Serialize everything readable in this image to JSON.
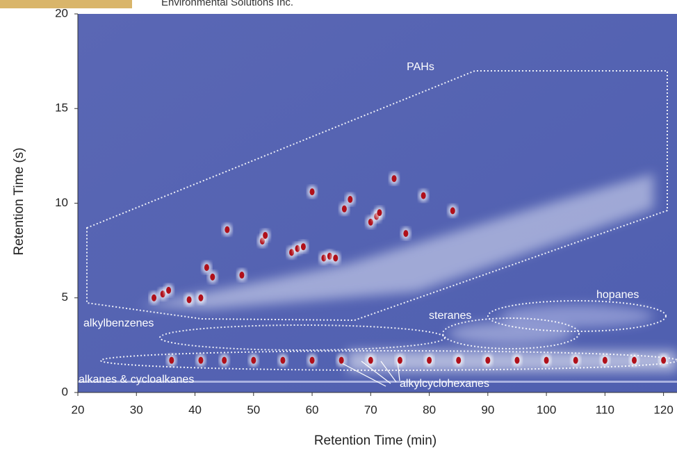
{
  "chart_data": {
    "type": "scatter",
    "header": "Environmental Solutions Inc.",
    "x_label": "Retention Time (min)",
    "y_label": "Retention Time (s)",
    "xlim": [
      20,
      122.3
    ],
    "ylim": [
      0,
      20
    ],
    "xticks": [
      20,
      30,
      40,
      50,
      60,
      70,
      80,
      90,
      100,
      110,
      120
    ],
    "yticks": [
      0,
      5,
      10,
      15,
      20
    ],
    "color": "#b0101a",
    "x": [
      33,
      34.5,
      35.5,
      39,
      41,
      42,
      43,
      45.5,
      48,
      51.5,
      52,
      56.5,
      57.5,
      58.5,
      60,
      62,
      63,
      64,
      65.5,
      66.5,
      70,
      71,
      71.5,
      74,
      76,
      79,
      84,
      36,
      41,
      45,
      50,
      55,
      60,
      65,
      70,
      75,
      80,
      85,
      90,
      95,
      100,
      105,
      110,
      115,
      120
    ],
    "y": [
      5.0,
      5.2,
      5.4,
      4.9,
      5.0,
      6.6,
      6.1,
      8.6,
      6.2,
      8.0,
      8.3,
      7.4,
      7.6,
      7.7,
      10.6,
      7.1,
      7.2,
      7.1,
      9.7,
      10.2,
      9.0,
      9.3,
      9.5,
      11.3,
      8.4,
      10.4,
      9.6,
      1.7,
      1.7,
      1.7,
      1.7,
      1.7,
      1.7,
      1.7,
      1.7,
      1.7,
      1.7,
      1.7,
      1.7,
      1.7,
      1.7,
      1.7,
      1.7,
      1.7,
      1.7
    ],
    "annotations": [
      "PAHs",
      "alkylbenzenes",
      "steranes",
      "hopanes",
      "alkanes & cycloalkanes",
      "alkylcyclohexanes"
    ]
  }
}
